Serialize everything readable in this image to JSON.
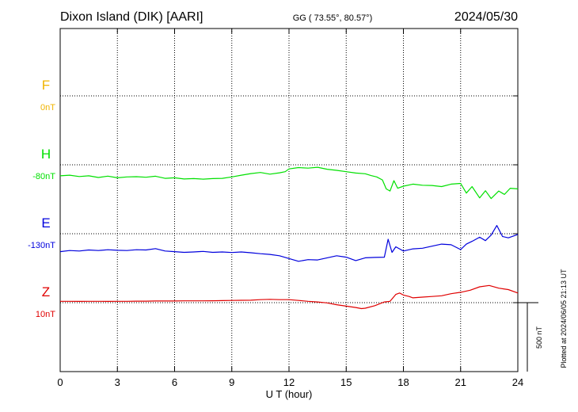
{
  "header": {
    "station": "Dixon Island (DIK)  [AARI]",
    "coords": "GG ( 73.55°,  80.57°)",
    "date": "2024/05/30"
  },
  "side_note": "Plotted at 2024/06/05 21:13 UT",
  "scale_label": "500 nT",
  "chart_data": {
    "type": "line",
    "xlabel": "U T (hour)",
    "xlim": [
      0,
      24
    ],
    "xticks": [
      0,
      3,
      6,
      9,
      12,
      15,
      18,
      21,
      24
    ],
    "xtick_labels": [
      "0",
      "3",
      "6",
      "9",
      "12",
      "15",
      "18",
      "21",
      "24"
    ],
    "y_unit": "nT",
    "scale_bar_nT": 500,
    "components": [
      {
        "name": "F",
        "baseline_label": "0nT",
        "color": "#f0b400",
        "x": [],
        "values": []
      },
      {
        "name": "H",
        "baseline_label": "-80nT",
        "color": "#00e000",
        "x": [
          0,
          0.5,
          1,
          1.5,
          2,
          2.5,
          3,
          3.5,
          4,
          4.5,
          5,
          5.5,
          6,
          6.5,
          7,
          7.5,
          8,
          8.5,
          9,
          9.5,
          10,
          10.5,
          11,
          11.5,
          11.8,
          12,
          12.5,
          13,
          13.5,
          14,
          14.5,
          15,
          15.5,
          16,
          16.3,
          16.6,
          16.9,
          17.1,
          17.3,
          17.5,
          17.7,
          18,
          18.5,
          19,
          19.5,
          20,
          20.5,
          21,
          21.3,
          21.6,
          22,
          22.3,
          22.6,
          23,
          23.3,
          23.6,
          24
        ],
        "values": [
          -80,
          -75,
          -85,
          -80,
          -92,
          -82,
          -94,
          -88,
          -86,
          -90,
          -83,
          -98,
          -94,
          -103,
          -100,
          -104,
          -100,
          -98,
          -88,
          -75,
          -64,
          -56,
          -68,
          -58,
          -50,
          -30,
          -20,
          -24,
          -18,
          -32,
          -40,
          -50,
          -60,
          -65,
          -78,
          -88,
          -110,
          -175,
          -190,
          -115,
          -170,
          -155,
          -140,
          -148,
          -150,
          -158,
          -140,
          -135,
          -205,
          -158,
          -240,
          -188,
          -245,
          -190,
          -215,
          -170,
          -175
        ]
      },
      {
        "name": "E",
        "baseline_label": "-130nT",
        "color": "#0000dd",
        "x": [
          0,
          0.5,
          1,
          1.5,
          2,
          2.5,
          3,
          3.5,
          4,
          4.5,
          5,
          5.5,
          6,
          6.5,
          7,
          7.5,
          8,
          8.5,
          9,
          9.5,
          10,
          10.5,
          11,
          11.5,
          12,
          12.5,
          13,
          13.5,
          14,
          14.5,
          15,
          15.5,
          16,
          16.5,
          17,
          17.2,
          17.4,
          17.6,
          18,
          18.5,
          19,
          19.5,
          20,
          20.5,
          21,
          21.3,
          21.6,
          22,
          22.3,
          22.6,
          22.9,
          23.2,
          23.5,
          24
        ],
        "values": [
          -130,
          -122,
          -125,
          -118,
          -122,
          -116,
          -120,
          -122,
          -116,
          -118,
          -108,
          -125,
          -130,
          -135,
          -132,
          -128,
          -135,
          -132,
          -136,
          -132,
          -138,
          -145,
          -150,
          -160,
          -180,
          -200,
          -188,
          -190,
          -175,
          -160,
          -170,
          -195,
          -175,
          -172,
          -170,
          -40,
          -135,
          -95,
          -125,
          -110,
          -105,
          -90,
          -75,
          -80,
          -115,
          -75,
          -55,
          -25,
          -50,
          -10,
          60,
          -20,
          -30,
          -5
        ]
      },
      {
        "name": "Z",
        "baseline_label": "10nT",
        "color": "#e00000",
        "x": [
          0,
          0.5,
          1,
          1.5,
          2,
          2.5,
          3,
          3.5,
          4,
          4.5,
          5,
          5.5,
          6,
          6.5,
          7,
          7.5,
          8,
          8.5,
          9,
          9.5,
          10,
          10.5,
          11,
          11.5,
          12,
          12.5,
          13,
          13.5,
          14,
          14.5,
          15,
          15.5,
          15.8,
          16,
          16.5,
          17,
          17.3,
          17.6,
          17.8,
          18,
          18.3,
          18.5,
          19,
          19.5,
          20,
          20.5,
          21,
          21.5,
          22,
          22.5,
          23,
          23.5,
          24
        ],
        "values": [
          10,
          10,
          9,
          10,
          10,
          9,
          10,
          10,
          11,
          11,
          12,
          12,
          12,
          13,
          13,
          13,
          14,
          15,
          16,
          17,
          18,
          22,
          24,
          22,
          22,
          16,
          10,
          5,
          -2,
          -15,
          -25,
          -35,
          -43,
          -40,
          -22,
          5,
          10,
          60,
          70,
          55,
          45,
          35,
          40,
          45,
          50,
          65,
          75,
          90,
          115,
          125,
          105,
          95,
          70
        ]
      }
    ]
  }
}
